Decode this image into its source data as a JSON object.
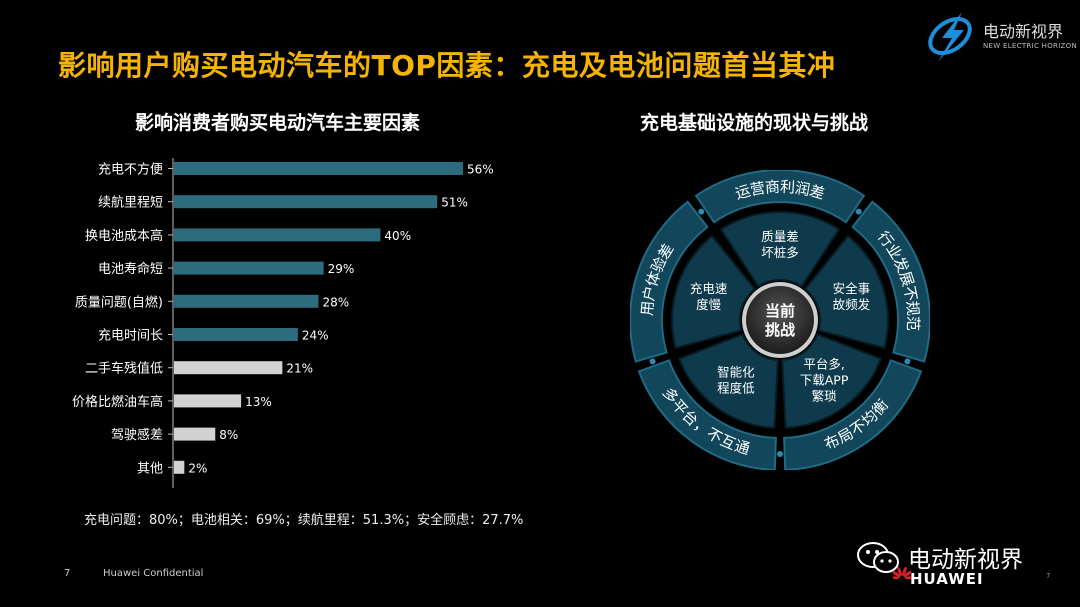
{
  "header": {
    "title": "影响用户购买电动汽车的TOP因素：充电及电池问题首当其冲",
    "logo_text": "电动新视界",
    "logo_sub": "NEW ELECTRIC HORIZON"
  },
  "left_panel": {
    "title": "影响消费者购买电动汽车主要因素",
    "summary": "充电问题：80%；电池相关：69%；续航里程：51.3%；安全顾虑：27.7%"
  },
  "chart_data": {
    "type": "bar",
    "orientation": "horizontal",
    "categories": [
      "充电不方便",
      "续航里程短",
      "换电池成本高",
      "电池寿命短",
      "质量问题(自燃)",
      "充电时间长",
      "二手车残值低",
      "价格比燃油车高",
      "驾驶感差",
      "其他"
    ],
    "values": [
      56,
      51,
      40,
      29,
      28,
      24,
      21,
      13,
      8,
      2
    ],
    "value_labels": [
      "56%",
      "51%",
      "40%",
      "29%",
      "28%",
      "24%",
      "21%",
      "13%",
      "8%",
      "2%"
    ],
    "bar_colors": [
      "#2d6c7e",
      "#2d6c7e",
      "#2d6c7e",
      "#2d6c7e",
      "#2d6c7e",
      "#2d6c7e",
      "#d2d2d2",
      "#d2d2d2",
      "#d2d2d2",
      "#d2d2d2"
    ],
    "xlim": [
      0,
      100
    ],
    "grid": false,
    "legend": "none"
  },
  "right_panel": {
    "title": "充电基础设施的现状与挑战",
    "center_label": [
      "当前",
      "挑战"
    ],
    "inner_segments": [
      [
        "质量差",
        "坏桩多"
      ],
      [
        "安全事",
        "故频发"
      ],
      [
        "平台多,",
        "下载APP",
        "繁琐"
      ],
      [
        "智能化",
        "程度低"
      ],
      [
        "充电速",
        "度慢"
      ]
    ],
    "outer_labels": [
      "运营商利润差",
      "行业发展不规范",
      "布局不均衡",
      "多平台，不互通",
      "用户体验差"
    ],
    "colors": {
      "ring": "#12465a",
      "ring_edge": "#1f6b84",
      "inner": "#0e3a4c",
      "hub": "#3a3a3a"
    }
  },
  "footer": {
    "page": "7",
    "confidential": "Huawei Confidential",
    "wechat_name": "电动新视界",
    "brand": "HUAWEI",
    "page_right": "7"
  }
}
